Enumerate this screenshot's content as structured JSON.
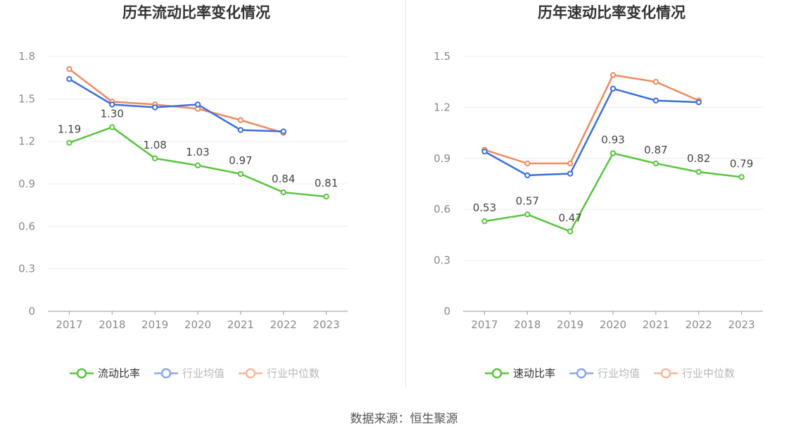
{
  "source": "数据来源：恒生聚源",
  "colors": {
    "main": "#5ac43e",
    "avg": "#3c6fd9",
    "median": "#f08a5d",
    "grid": "#e9ecf3",
    "axis": "#999999"
  },
  "chart_data": [
    {
      "type": "line",
      "title": "历年流动比率变化情况",
      "categories": [
        "2017",
        "2018",
        "2019",
        "2020",
        "2021",
        "2022",
        "2023"
      ],
      "ylim": [
        0,
        1.8
      ],
      "yticks": [
        "0",
        "0.3",
        "0.6",
        "0.9",
        "1.2",
        "1.5",
        "1.8"
      ],
      "grid": true,
      "legend_position": "bottom",
      "series": [
        {
          "name": "流动比率",
          "values": [
            1.19,
            1.3,
            1.08,
            1.03,
            0.97,
            0.84,
            0.81
          ],
          "labels": [
            "1.19",
            "1.30",
            "1.08",
            "1.03",
            "0.97",
            "0.84",
            "0.81"
          ]
        },
        {
          "name": "行业均值",
          "values": [
            1.64,
            1.46,
            1.44,
            1.46,
            1.28,
            1.27,
            null
          ]
        },
        {
          "name": "行业中位数",
          "values": [
            1.71,
            1.48,
            1.46,
            1.43,
            1.35,
            1.26,
            null
          ]
        }
      ]
    },
    {
      "type": "line",
      "title": "历年速动比率变化情况",
      "categories": [
        "2017",
        "2018",
        "2019",
        "2020",
        "2021",
        "2022",
        "2023"
      ],
      "ylim": [
        0,
        1.5
      ],
      "yticks": [
        "0",
        "0.3",
        "0.6",
        "0.9",
        "1.2",
        "1.5"
      ],
      "grid": true,
      "legend_position": "bottom",
      "series": [
        {
          "name": "速动比率",
          "values": [
            0.53,
            0.57,
            0.47,
            0.93,
            0.87,
            0.82,
            0.79
          ],
          "labels": [
            "0.53",
            "0.57",
            "0.47",
            "0.93",
            "0.87",
            "0.82",
            "0.79"
          ]
        },
        {
          "name": "行业均值",
          "values": [
            0.94,
            0.8,
            0.81,
            1.31,
            1.24,
            1.23,
            null
          ]
        },
        {
          "name": "行业中位数",
          "values": [
            0.95,
            0.87,
            0.87,
            1.39,
            1.35,
            1.24,
            null
          ]
        }
      ]
    }
  ]
}
